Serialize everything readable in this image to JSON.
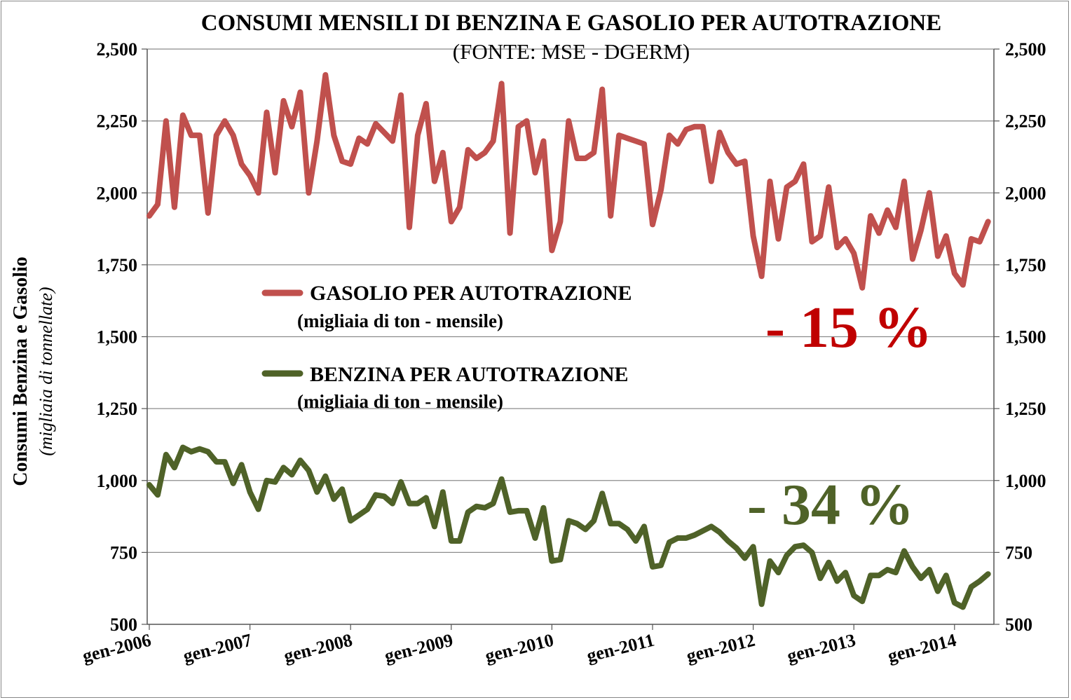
{
  "chart_data": {
    "type": "line",
    "title": "CONSUMI MENSILI DI BENZINA E GASOLIO PER AUTOTRAZIONE",
    "subtitle": "(FONTE: MSE - DGERM)",
    "ylabel": "Consumi Benzina e Gasolio",
    "ylabel_unit": "(migliaia di tonnellate)",
    "ylim": [
      500,
      2500
    ],
    "yticks": [
      "500",
      "750",
      "1,000",
      "1,250",
      "1,500",
      "1,750",
      "2,000",
      "2,250",
      "2,500"
    ],
    "xticks": [
      "gen-2006",
      "gen-2007",
      "gen-2008",
      "gen-2009",
      "gen-2010",
      "gen-2011",
      "gen-2012",
      "gen-2013",
      "gen-2014"
    ],
    "grid": "horizontal",
    "secondary_axis": "right",
    "series": [
      {
        "name": "GASOLIO PER AUTOTRAZIONE",
        "unit": "(migliaia di ton - mensile)",
        "color": "#c0504d",
        "values": [
          1920,
          1960,
          2250,
          1950,
          2270,
          2200,
          2200,
          1930,
          2200,
          2250,
          2200,
          2100,
          2060,
          2000,
          2280,
          2070,
          2320,
          2230,
          2350,
          2000,
          2180,
          2410,
          2200,
          2110,
          2100,
          2190,
          2170,
          2240,
          2210,
          2180,
          2340,
          1880,
          2200,
          2310,
          2040,
          2140,
          1900,
          1950,
          2150,
          2120,
          2140,
          2180,
          2380,
          1860,
          2230,
          2250,
          2070,
          2180,
          1800,
          1900,
          2250,
          2120,
          2120,
          2140,
          2360,
          1920,
          2200,
          2190,
          2180,
          2170,
          1890,
          2010,
          2200,
          2170,
          2220,
          2230,
          2230,
          2040,
          2210,
          2140,
          2100,
          2110,
          1850,
          1710,
          2040,
          1840,
          2020,
          2040,
          2100,
          1830,
          1850,
          2020,
          1810,
          1840,
          1790,
          1670,
          1920,
          1860,
          1940,
          1880,
          2040,
          1770,
          1870,
          2000,
          1780,
          1850,
          1720,
          1680,
          1840,
          1830,
          1900
        ],
        "annotation": "- 15 %"
      },
      {
        "name": "BENZINA PER AUTOTRAZIONE",
        "unit": "(migliaia di ton - mensile)",
        "color": "#4f6228",
        "values": [
          985,
          950,
          1090,
          1045,
          1115,
          1100,
          1110,
          1100,
          1065,
          1065,
          990,
          1055,
          960,
          900,
          1000,
          995,
          1045,
          1020,
          1070,
          1035,
          960,
          1015,
          935,
          970,
          860,
          880,
          900,
          950,
          945,
          920,
          995,
          920,
          920,
          940,
          840,
          960,
          790,
          790,
          890,
          910,
          905,
          920,
          1005,
          890,
          895,
          895,
          800,
          905,
          720,
          725,
          860,
          850,
          830,
          860,
          955,
          850,
          850,
          830,
          790,
          840,
          700,
          705,
          785,
          800,
          800,
          810,
          825,
          840,
          820,
          790,
          765,
          730,
          770,
          570,
          720,
          680,
          740,
          770,
          775,
          750,
          660,
          715,
          650,
          680,
          600,
          580,
          670,
          670,
          690,
          680,
          755,
          700,
          660,
          690,
          615,
          670,
          575,
          560,
          630,
          650,
          675
        ],
        "annotation": "- 34 %"
      }
    ]
  }
}
